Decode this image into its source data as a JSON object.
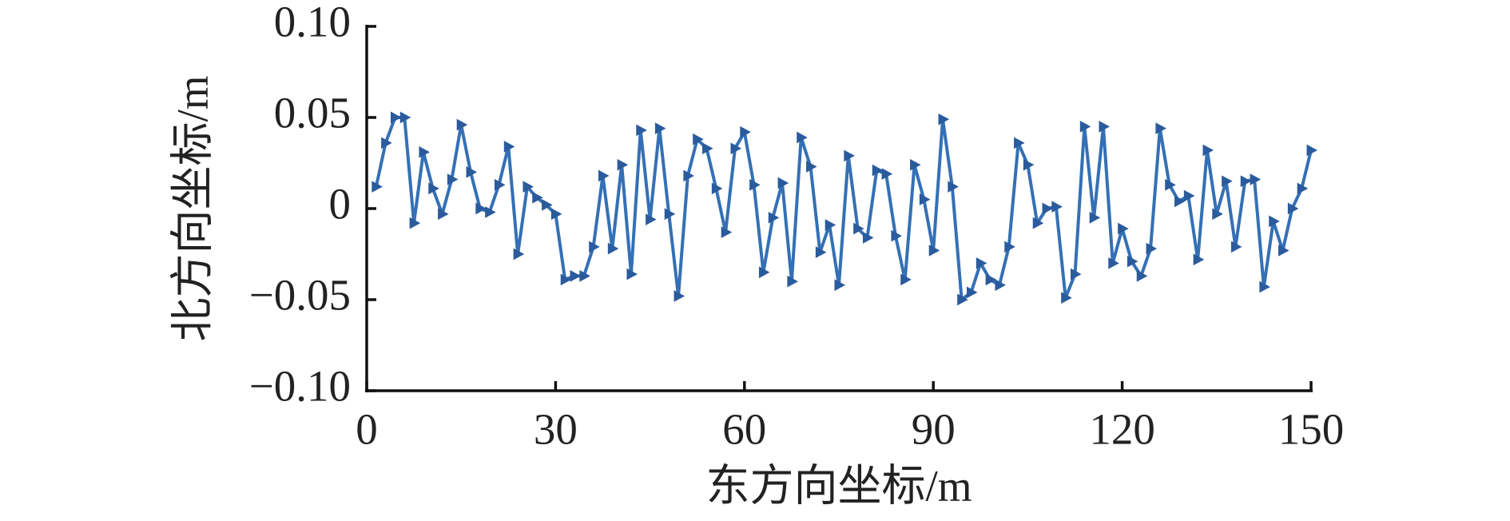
{
  "chart_data": {
    "type": "line",
    "x_label": "东方向坐标/m",
    "y_label": "北方向坐标/m",
    "x": [
      1.5,
      3,
      4.5,
      6,
      7.5,
      9,
      10.5,
      12,
      13.5,
      15,
      16.5,
      18,
      19.5,
      21,
      22.5,
      24,
      25.5,
      27,
      28.5,
      30,
      31.5,
      33,
      34.5,
      36,
      37.5,
      39,
      40.5,
      42,
      43.5,
      45,
      46.5,
      48,
      49.5,
      51,
      52.5,
      54,
      55.5,
      57,
      58.5,
      60,
      61.5,
      63,
      64.5,
      66,
      67.5,
      69,
      70.5,
      72,
      73.5,
      75,
      76.5,
      78,
      79.5,
      81,
      82.5,
      84,
      85.5,
      87,
      88.5,
      90,
      91.5,
      93,
      94.5,
      96,
      97.5,
      99,
      100.5,
      102,
      103.5,
      105,
      106.5,
      108,
      109.5,
      111,
      112.5,
      114,
      115.5,
      117,
      118.5,
      120,
      121.5,
      123,
      124.5,
      126,
      127.5,
      129,
      130.5,
      132,
      133.5,
      135,
      136.5,
      138,
      139.5,
      141,
      142.5,
      144,
      145.5,
      147,
      148.5,
      150
    ],
    "series": [
      {
        "color": "#3470b5",
        "marker_color": "#2a5b9c",
        "values": [
          0.012,
          0.036,
          0.05,
          0.05,
          -0.008,
          0.031,
          0.011,
          -0.003,
          0.016,
          0.046,
          0.02,
          0,
          -0.002,
          0.013,
          0.034,
          -0.025,
          0.012,
          0.006,
          0.002,
          -0.003,
          -0.039,
          -0.037,
          -0.037,
          -0.021,
          0.018,
          -0.022,
          0.024,
          -0.036,
          0.043,
          -0.006,
          0.044,
          -0.003,
          -0.048,
          0.018,
          0.038,
          0.033,
          0.011,
          -0.013,
          0.033,
          0.042,
          0.013,
          -0.035,
          -0.005,
          0.014,
          -0.04,
          0.039,
          0.023,
          -0.024,
          -0.009,
          -0.042,
          0.029,
          -0.011,
          -0.016,
          0.021,
          0.019,
          -0.015,
          -0.039,
          0.024,
          0.005,
          -0.023,
          0.049,
          0.012,
          -0.05,
          -0.046,
          -0.03,
          -0.039,
          -0.042,
          -0.021,
          0.036,
          0.024,
          -0.008,
          0,
          0.001,
          -0.049,
          -0.036,
          0.045,
          -0.005,
          0.045,
          -0.03,
          -0.011,
          -0.029,
          -0.037,
          -0.022,
          0.044,
          0.013,
          0.004,
          0.007,
          -0.028,
          0.032,
          -0.003,
          0.015,
          -0.021,
          0.015,
          0.016,
          -0.043,
          -0.007,
          -0.023,
          0,
          0.011,
          0.032
        ]
      }
    ],
    "xlim": [
      0,
      150
    ],
    "xticks": [
      0,
      30,
      60,
      90,
      120,
      150
    ],
    "ylim": [
      -0.1,
      0.1
    ],
    "yticks": [
      {
        "value": -0.1,
        "label": "−0.10"
      },
      {
        "value": -0.05,
        "label": "−0.05"
      },
      0,
      0.05,
      {
        "value": 0.1,
        "label": "0.10"
      }
    ],
    "grid": false
  }
}
